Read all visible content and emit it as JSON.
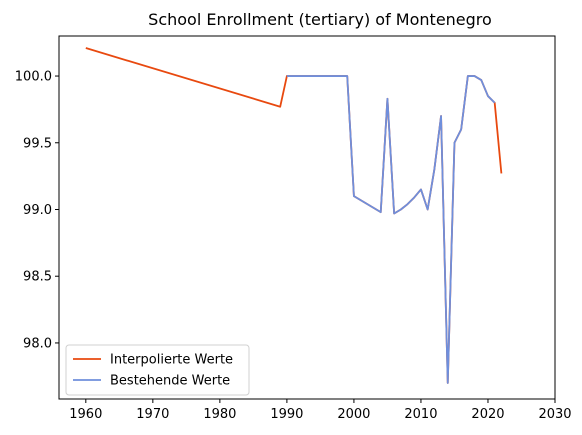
{
  "chart_data": {
    "type": "line",
    "title": "School Enrollment (tertiary) of Montenegro",
    "xlabel": "",
    "ylabel": "",
    "xlim": [
      1956,
      2030
    ],
    "ylim": [
      97.58,
      100.3
    ],
    "xticks": [
      1960,
      1970,
      1980,
      1990,
      2000,
      2010,
      2020,
      2030
    ],
    "yticks": [
      98.0,
      98.5,
      99.0,
      99.5,
      100.0
    ],
    "ytick_labels": [
      "98.0",
      "98.5",
      "99.0",
      "99.5",
      "100.0"
    ],
    "grid": false,
    "legend_position": "lower-left",
    "series": [
      {
        "name": "Interpolierte Werte",
        "color": "#e8490f",
        "x": [
          1960,
          1989,
          1990,
          1999,
          2000,
          2004,
          2005,
          2006,
          2007,
          2008,
          2009,
          2010,
          2011,
          2012,
          2013,
          2014,
          2015,
          2016,
          2017,
          2018,
          2019,
          2020,
          2021,
          2022
        ],
        "y": [
          100.21,
          99.77,
          100.0,
          100.0,
          99.1,
          98.98,
          99.83,
          98.97,
          99.0,
          99.04,
          99.09,
          99.15,
          99.0,
          99.3,
          99.7,
          97.7,
          99.5,
          99.6,
          100.0,
          100.0,
          99.97,
          99.85,
          99.8,
          99.27
        ]
      },
      {
        "name": "Bestehende Werte",
        "color": "#6f8fdc",
        "x": [
          1990,
          1999,
          2000,
          2004,
          2005,
          2006,
          2007,
          2008,
          2009,
          2010,
          2011,
          2012,
          2013,
          2014,
          2015,
          2016,
          2017,
          2018,
          2019,
          2020,
          2021
        ],
        "y": [
          100.0,
          100.0,
          99.1,
          98.98,
          99.83,
          98.97,
          99.0,
          99.04,
          99.09,
          99.15,
          99.0,
          99.3,
          99.7,
          97.7,
          99.5,
          99.6,
          100.0,
          100.0,
          99.97,
          99.85,
          99.8
        ]
      }
    ]
  }
}
